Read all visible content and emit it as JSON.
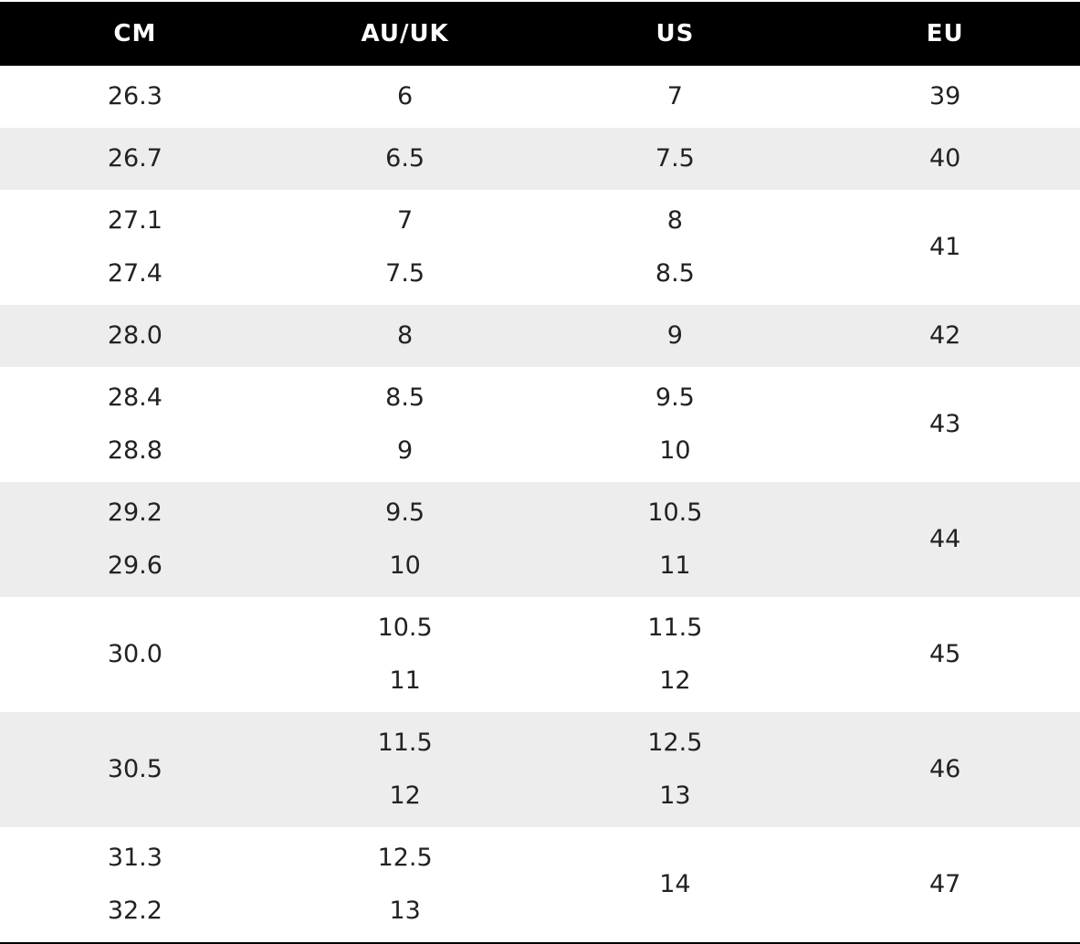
{
  "table": {
    "header": [
      "CM",
      "AU/UK",
      "US",
      "EU"
    ],
    "rows": [
      [
        [
          "26.3"
        ],
        [
          "6"
        ],
        [
          "7"
        ],
        [
          "39"
        ]
      ],
      [
        [
          "26.7"
        ],
        [
          "6.5"
        ],
        [
          "7.5"
        ],
        [
          "40"
        ]
      ],
      [
        [
          "27.1",
          "27.4"
        ],
        [
          "7",
          "7.5"
        ],
        [
          "8",
          "8.5"
        ],
        [
          "41"
        ]
      ],
      [
        [
          "28.0"
        ],
        [
          "8"
        ],
        [
          "9"
        ],
        [
          "42"
        ]
      ],
      [
        [
          "28.4",
          "28.8"
        ],
        [
          "8.5",
          "9"
        ],
        [
          "9.5",
          "10"
        ],
        [
          "43"
        ]
      ],
      [
        [
          "29.2",
          "29.6"
        ],
        [
          "9.5",
          "10"
        ],
        [
          "10.5",
          "11"
        ],
        [
          "44"
        ]
      ],
      [
        [
          "30.0"
        ],
        [
          "10.5",
          "11"
        ],
        [
          "11.5",
          "12"
        ],
        [
          "45"
        ]
      ],
      [
        [
          "30.5"
        ],
        [
          "11.5",
          "12"
        ],
        [
          "12.5",
          "13"
        ],
        [
          "46"
        ]
      ],
      [
        [
          "31.3",
          "32.2"
        ],
        [
          "12.5",
          "13"
        ],
        [
          "14"
        ],
        [
          "47"
        ]
      ]
    ]
  }
}
